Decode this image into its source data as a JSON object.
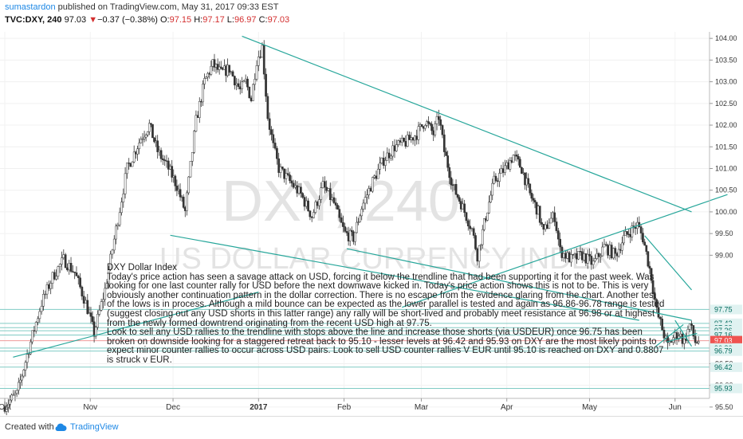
{
  "header": {
    "author": "sumastardon",
    "published_text": " published on TradingView.com, May 31, 2017 09:33 EST",
    "symbol": "TVC:DXY, 240",
    "last": "97.03",
    "change_arrow": "▼",
    "change": "−0.37 (−0.38%)",
    "o_label": "O:",
    "o_value": "97.15",
    "h_label": "H:",
    "h_value": "97.17",
    "l_label": "L:",
    "l_value": "96.97",
    "c_label": "C:",
    "c_value": "97.03"
  },
  "chart_data": {
    "type": "candlestick",
    "symbol": "TVC:DXY",
    "interval": "240",
    "ylim": [
      95.7,
      104.15
    ],
    "y_ticks": [
      "104.00",
      "103.50",
      "103.00",
      "102.50",
      "102.00",
      "101.50",
      "101.00",
      "100.50",
      "100.00",
      "99.50",
      "99.00",
      "96.50",
      "96.00",
      "95.50"
    ],
    "x_labels": [
      "Oct",
      "Nov",
      "Dec",
      "2017",
      "Feb",
      "Mar",
      "Apr",
      "May",
      "Jun"
    ],
    "x_label_day_index": [
      0,
      31,
      61,
      92,
      123,
      151,
      182,
      212,
      243
    ],
    "price_path": [
      [
        0,
        95.5
      ],
      [
        5,
        95.8
      ],
      [
        10,
        97.0
      ],
      [
        14,
        97.9
      ],
      [
        18,
        98.5
      ],
      [
        22,
        98.9
      ],
      [
        26,
        98.6
      ],
      [
        30,
        97.9
      ],
      [
        33,
        97.2
      ],
      [
        37,
        98.2
      ],
      [
        41,
        99.6
      ],
      [
        45,
        101.0
      ],
      [
        50,
        101.7
      ],
      [
        53,
        102.0
      ],
      [
        56,
        101.4
      ],
      [
        60,
        101.0
      ],
      [
        63,
        100.6
      ],
      [
        66,
        100.0
      ],
      [
        70,
        102.1
      ],
      [
        73,
        103.0
      ],
      [
        76,
        103.4
      ],
      [
        79,
        103.2
      ],
      [
        82,
        103.3
      ],
      [
        86,
        102.8
      ],
      [
        88,
        103.0
      ],
      [
        90,
        102.6
      ],
      [
        92,
        103.5
      ],
      [
        94,
        103.8
      ],
      [
        96,
        102.2
      ],
      [
        98,
        101.5
      ],
      [
        100,
        101.0
      ],
      [
        104,
        100.7
      ],
      [
        108,
        100.4
      ],
      [
        112,
        99.9
      ],
      [
        116,
        100.6
      ],
      [
        120,
        100.2
      ],
      [
        122,
        99.8
      ],
      [
        124,
        99.5
      ],
      [
        127,
        99.4
      ],
      [
        130,
        100.1
      ],
      [
        134,
        100.7
      ],
      [
        138,
        101.2
      ],
      [
        142,
        101.5
      ],
      [
        146,
        101.6
      ],
      [
        150,
        101.8
      ],
      [
        153,
        102.1
      ],
      [
        156,
        101.8
      ],
      [
        158,
        102.2
      ],
      [
        160,
        101.4
      ],
      [
        163,
        100.6
      ],
      [
        166,
        100.2
      ],
      [
        170,
        99.6
      ],
      [
        172,
        99.0
      ],
      [
        175,
        99.9
      ],
      [
        178,
        100.7
      ],
      [
        182,
        101.0
      ],
      [
        185,
        101.3
      ],
      [
        188,
        101.0
      ],
      [
        191,
        100.4
      ],
      [
        194,
        100.0
      ],
      [
        196,
        99.5
      ],
      [
        198,
        99.8
      ],
      [
        200,
        99.9
      ],
      [
        202,
        99.1
      ],
      [
        206,
        98.9
      ],
      [
        210,
        99.0
      ],
      [
        214,
        98.8
      ],
      [
        218,
        99.2
      ],
      [
        222,
        99.0
      ],
      [
        225,
        99.4
      ],
      [
        228,
        99.6
      ],
      [
        230,
        99.7
      ],
      [
        232,
        99.4
      ],
      [
        235,
        98.5
      ],
      [
        237,
        97.7
      ],
      [
        239,
        97.3
      ],
      [
        241,
        96.9
      ],
      [
        243,
        97.1
      ],
      [
        245,
        97.2
      ],
      [
        247,
        97.0
      ],
      [
        249,
        97.4
      ],
      [
        251,
        97.0
      ],
      [
        252,
        97.03
      ]
    ],
    "trendlines": [
      {
        "from": [
          3,
          96.65
        ],
        "to": [
          92,
          98.15
        ]
      },
      {
        "from": [
          60,
          99.46
        ],
        "to": [
          230,
          97.5
        ]
      },
      {
        "from": [
          144,
          97.8
        ],
        "to": [
          262,
          100.4
        ]
      },
      {
        "from": [
          86,
          104.05
        ],
        "to": [
          249,
          100.0
        ]
      },
      {
        "from": [
          124,
          99.15
        ],
        "to": [
          249,
          97.5
        ]
      },
      {
        "from": [
          232,
          99.45
        ],
        "to": [
          249,
          98.2
        ]
      },
      {
        "from": [
          236,
          96.9
        ],
        "to": [
          246,
          97.4
        ]
      },
      {
        "from": [
          240,
          97.0
        ],
        "to": [
          251,
          97.2
        ]
      },
      {
        "from": [
          243,
          97.5
        ],
        "to": [
          249,
          96.9
        ]
      }
    ],
    "price_markers": [
      {
        "label": "97.75",
        "value": 97.75,
        "bg": "#e0f2f1",
        "fg": "#00695c",
        "line": "#80cbc4"
      },
      {
        "label": "97.43",
        "value": 97.43,
        "bg": "#e0f2f1",
        "fg": "#00695c",
        "line": "#80cbc4"
      },
      {
        "label": "97.33",
        "value": 97.33,
        "bg": "#e0f2f1",
        "fg": "#00695c",
        "line": "#80cbc4"
      },
      {
        "label": "97.26",
        "value": 97.26,
        "bg": "#e0f2f1",
        "fg": "#00695c",
        "line": "#80cbc4"
      },
      {
        "label": "97.16",
        "value": 97.16,
        "bg": "#e0f2f1",
        "fg": "#00695c",
        "line": "#80cbc4"
      },
      {
        "label": "97.03",
        "value": 97.03,
        "bg": "#ef5350",
        "fg": "#ffffff",
        "line": "#ef9a9a"
      },
      {
        "label": "26:33",
        "value": 96.88,
        "bg": "#ef5350",
        "fg": "#ffffff",
        "line": ""
      },
      {
        "label": "96.86",
        "value": 96.86,
        "bg": "#e0f2f1",
        "fg": "#00695c",
        "line": "#80cbc4"
      },
      {
        "label": "96.79",
        "value": 96.79,
        "bg": "#e0f2f1",
        "fg": "#00695c",
        "line": "#80cbc4"
      },
      {
        "label": "96.42",
        "value": 96.42,
        "bg": "#e0f2f1",
        "fg": "#00695c",
        "line": "#80cbc4"
      },
      {
        "label": "95.93",
        "value": 95.93,
        "bg": "#e0f2f1",
        "fg": "#00695c",
        "line": "#80cbc4"
      }
    ],
    "watermark_symbol": "DXY, 240",
    "watermark_name": "US DOLLAR CURRENCY INDEX",
    "colors": {
      "up": "#26a69a",
      "down": "#ef5350",
      "candle": "#333333",
      "trend": "#26a69a"
    }
  },
  "note": {
    "text": "DXY  Dollar Index\nToday's price action has seen a savage attack on USD, forcing it below the trendline that had been supporting it for the past week. Was looking for one last counter rally for USD before the next downwave kicked in. Today's price action shows this is not to be. This is very obviously another continuation pattern in the dollar correction. There is no escape from the evidence glaring from the chart. Another test of the lows is in process. Although a mild bounce can be expected as the lower parallel is tested and again as 96.86-96.78  range is tested (suggest closing out any USD shorts in this latter range) any rally will be short-lived and probably meet resistance at 96.98 or at highest from the newly formed downtrend originating from the recent USD high at 97.75.\nLook to sell any USD rallies to the trendline with stops above the line and increase those shorts (via USDEUR) once 96.75 has been broken on downside looking for a staggered retreat back to 95.10 - lesser levels at 96.42 and 95.93 on DXY are the most likely points to expect minor counter rallies to occur across USD pairs. Look to sell USD counter rallies V EUR until 95.10 is reached on DXY and 0.8807 is struck v EUR."
  },
  "footer": {
    "created_with": "Created with",
    "brand": "TradingView"
  }
}
